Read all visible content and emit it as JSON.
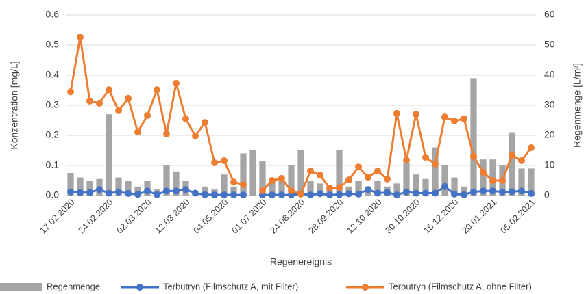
{
  "chart_data": {
    "type": "bar_line",
    "y_label": "Konzentration [mg/L]",
    "y2_label": "Regenmenge [L/m²]",
    "x_label": "Regenereignis",
    "categories": [
      "17.02.2020",
      null,
      null,
      null,
      "24.02.2020",
      null,
      null,
      null,
      "02.03.2020",
      null,
      null,
      null,
      "12.03.2020",
      null,
      null,
      null,
      "04.05.2020",
      null,
      null,
      null,
      "01.07.2020",
      null,
      null,
      null,
      "24.08.2020",
      null,
      null,
      null,
      "28.09.2020",
      null,
      null,
      null,
      "12.10.2020",
      null,
      null,
      null,
      "30.10.2020",
      null,
      null,
      null,
      "15.12.2020",
      null,
      null,
      null,
      "20.01.2021",
      null,
      null,
      null,
      "05.02.2021"
    ],
    "series": [
      {
        "name": "Regenmenge",
        "color": "#a5a5a5",
        "kind": "bar",
        "axis": "y2",
        "values": [
          7.5,
          6,
          5,
          5.5,
          27,
          6,
          5,
          3,
          5,
          2,
          10,
          8,
          5,
          1,
          3,
          2,
          7,
          3,
          14,
          15,
          11.5,
          5,
          5,
          10,
          15,
          5,
          4,
          2,
          15,
          3,
          5,
          3,
          5,
          3,
          4,
          11,
          7,
          5.5,
          16,
          10,
          6,
          3,
          39,
          12,
          12,
          10,
          21,
          9,
          9
        ]
      },
      {
        "name": "Terbutryn (Filmschutz A, mit Filter)",
        "color": "#4472c4",
        "kind": "line",
        "values": [
          0.012,
          0.01,
          0.01,
          0.02,
          0.008,
          0.012,
          0.007,
          0.004,
          0.015,
          0.003,
          0.015,
          0.015,
          0.02,
          0.008,
          0.003,
          0.002,
          0.002,
          0.002,
          0.002,
          null,
          0.002,
          0.002,
          0.002,
          0.002,
          0.005,
          0.002,
          0.006,
          0.002,
          0.003,
          0.006,
          0.005,
          0.02,
          0.008,
          0.01,
          0.002,
          0.012,
          0.008,
          0.008,
          0.008,
          0.03,
          0.005,
          0.003,
          0.012,
          0.015,
          0.015,
          0.012,
          0.013,
          0.015,
          0.007
        ]
      },
      {
        "name": "Terbutryn (Filmschutz A, ohne Filter)",
        "color": "#ed7d31",
        "kind": "line",
        "values": [
          0.345,
          0.527,
          0.314,
          0.307,
          0.352,
          0.282,
          0.323,
          0.211,
          0.266,
          0.352,
          0.205,
          0.373,
          0.255,
          0.198,
          0.243,
          0.109,
          0.116,
          0.045,
          0.036,
          null,
          0.016,
          0.05,
          0.057,
          0.016,
          0.005,
          0.082,
          0.068,
          0.025,
          0.027,
          0.052,
          0.095,
          0.061,
          0.082,
          0.055,
          0.273,
          0.118,
          0.27,
          0.127,
          0.105,
          0.261,
          0.248,
          0.255,
          0.13,
          0.077,
          0.05,
          0.05,
          0.134,
          0.116,
          0.159
        ]
      }
    ],
    "ylim": [
      0,
      0.6
    ],
    "yticks": [
      {
        "value": 0,
        "label": "0.0"
      },
      0.1,
      0.2,
      0.3,
      0.4,
      0.5,
      0.6
    ],
    "y2lim": [
      0,
      60
    ],
    "y2ticks": [
      0,
      10,
      20,
      30,
      40,
      50,
      60
    ],
    "grid": true,
    "legend": "bottom"
  }
}
